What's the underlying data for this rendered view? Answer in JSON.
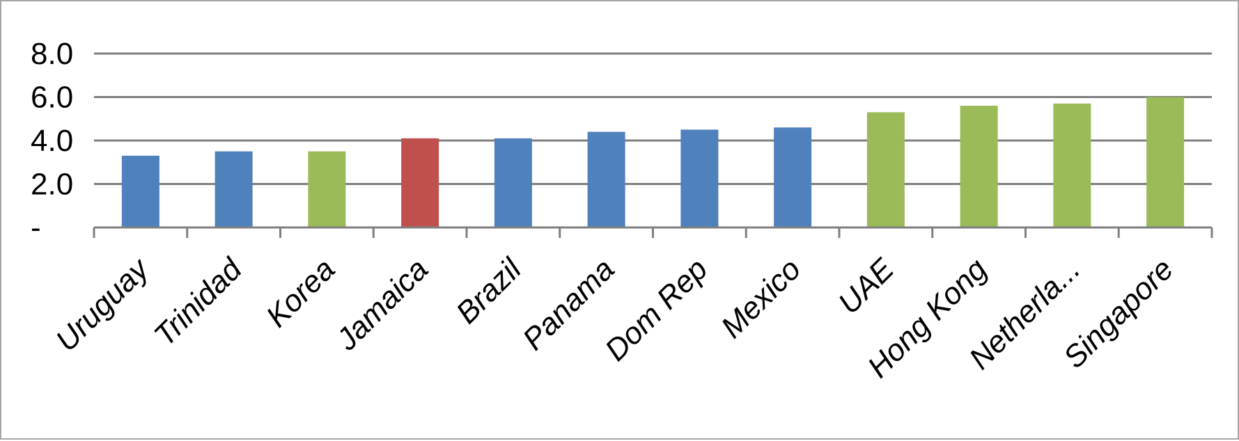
{
  "chart_data": {
    "type": "bar",
    "title": "",
    "xlabel": "",
    "ylabel": "",
    "categories": [
      "Uruguay",
      "Trinidad",
      "Korea",
      "Jamaica",
      "Brazil",
      "Panama",
      "Dom Rep",
      "Mexico",
      "UAE",
      "Hong Kong",
      "Netherla...",
      "Singapore"
    ],
    "values": [
      3.3,
      3.5,
      3.5,
      4.1,
      4.1,
      4.4,
      4.5,
      4.6,
      5.3,
      5.6,
      5.7,
      6.0
    ],
    "bar_colors": [
      "#4f81bd",
      "#4f81bd",
      "#9bbb59",
      "#c0504d",
      "#4f81bd",
      "#4f81bd",
      "#4f81bd",
      "#4f81bd",
      "#9bbb59",
      "#9bbb59",
      "#9bbb59",
      "#9bbb59"
    ],
    "ylim": [
      0,
      8
    ],
    "yticks": [
      0,
      2,
      4,
      6,
      8
    ],
    "ytick_labels": [
      "-",
      "2.0",
      "4.0",
      "6.0",
      "8.0"
    ],
    "grid": true,
    "legend": "none"
  },
  "colors": {
    "gridline": "#7f7f7f",
    "frame": "#a6a6a6"
  }
}
